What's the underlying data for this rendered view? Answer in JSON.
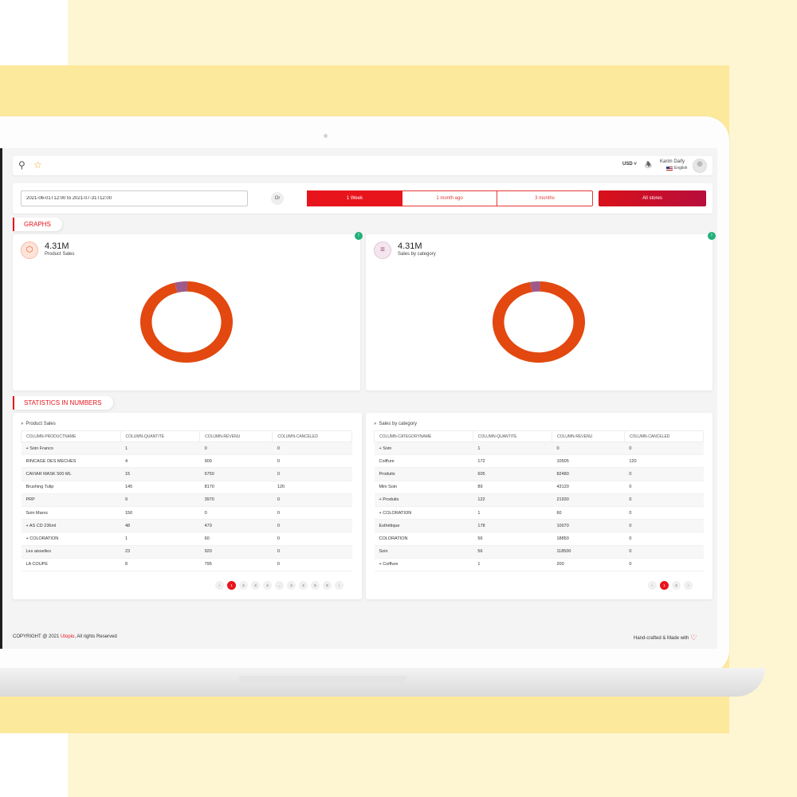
{
  "topbar": {
    "currency": "USD",
    "user_name": "Karim Daify",
    "language": "English"
  },
  "filters": {
    "date_range": "2021-06-01T12:00 to 2021-07-31T12:00",
    "or_label": "Or",
    "period_options": [
      "1 Week",
      "1 month ago",
      "3 months"
    ],
    "selected_period": "1 Week",
    "stores_label": "All stores"
  },
  "sections": {
    "graphs": "GRAPHS",
    "stats": "STATISTICS IN NUMBERS"
  },
  "graphs": [
    {
      "value": "4.31M",
      "label": "Product Sales",
      "badge": "!"
    },
    {
      "value": "4.31M",
      "label": "Sales by category",
      "badge": "!"
    }
  ],
  "colors": {
    "accent": "#e8141b",
    "donut_main": "#e2480f",
    "donut_slice": "#9e5a8a",
    "badge_green": "#20b07a"
  },
  "chart_data": [
    {
      "type": "pie",
      "slices": [
        {
          "value": 95.5,
          "color": "#e2480f"
        },
        {
          "value": 4.5,
          "color": "#9e5a8a"
        }
      ]
    },
    {
      "type": "pie",
      "slices": [
        {
          "value": 96.5,
          "color": "#e2480f"
        },
        {
          "value": 3.5,
          "color": "#9e5a8a"
        }
      ]
    }
  ],
  "tables": [
    {
      "title": "Product Sales",
      "headers": [
        "COLUMN-PRODUCTNAME",
        "COLUMN-QUANTITE",
        "COLUMN-REVENU",
        "COLUMN-CANCELED"
      ],
      "rows": [
        [
          "+ Soin Franco",
          "1",
          "0",
          "0"
        ],
        [
          "RINCAGE DES MECHES",
          "4",
          "900",
          "0"
        ],
        [
          "CAVIAR MASK 500 ML",
          "15",
          "6750",
          "0"
        ],
        [
          "Brushing Tulip",
          "145",
          "8170",
          "120"
        ],
        [
          "PRP",
          "9",
          "3970",
          "0"
        ],
        [
          "Soin Maroc",
          "150",
          "0",
          "0"
        ],
        [
          "+ AS CD 236ml",
          "48",
          "470",
          "0"
        ],
        [
          "+ COLORATION",
          "1",
          "60",
          "0"
        ],
        [
          "Les aisselles",
          "23",
          "920",
          "0"
        ],
        [
          "LA COUPE",
          "8",
          "795",
          "0"
        ]
      ],
      "pagination": [
        "‹",
        "1",
        "2",
        "3",
        "4",
        "...",
        "3",
        "4",
        "5",
        "5",
        "›"
      ]
    },
    {
      "title": "Sales by category",
      "headers": [
        "COLUMN-CATEGORYNAME",
        "COLUMN-QUANTITE",
        "COLUMN-REVENU",
        "COLUMN-CANCELED"
      ],
      "rows": [
        [
          "+ Soin",
          "1",
          "0",
          "0"
        ],
        [
          "Coiffure",
          "172",
          "10505",
          "120"
        ],
        [
          "Produits",
          "605",
          "82480",
          "0"
        ],
        [
          "Mini Soin",
          "89",
          "43120",
          "0"
        ],
        [
          "+ Produits",
          "122",
          "21930",
          "0"
        ],
        [
          "+ COLORATION",
          "1",
          "60",
          "0"
        ],
        [
          "Esthétique",
          "178",
          "10070",
          "0"
        ],
        [
          "COLORATION",
          "56",
          "18850",
          "0"
        ],
        [
          "Soin",
          "56",
          "118500",
          "0"
        ],
        [
          "+ Coiffure",
          "1",
          "200",
          "0"
        ]
      ],
      "pagination": [
        "‹",
        "1",
        "2",
        "›"
      ]
    }
  ],
  "footer": {
    "copyright_prefix": "COPYRIGHT @ 2021 ",
    "brand": "Utopio",
    "copyright_suffix": ", All rights Reserved",
    "made_with": "Hand-crafted & Made with"
  }
}
